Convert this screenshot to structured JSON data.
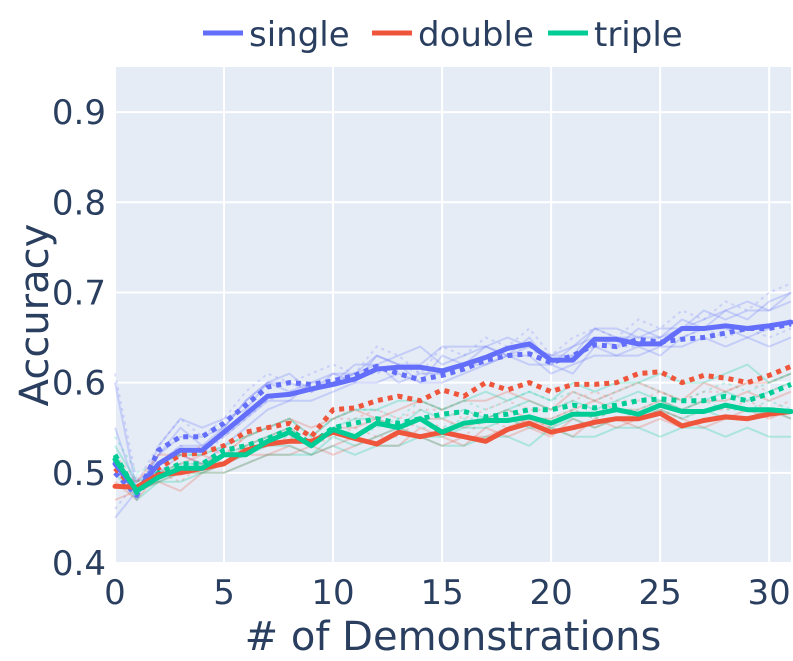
{
  "chart_data": {
    "type": "line",
    "xlabel": "# of Demonstrations",
    "ylabel": "Accuracy",
    "xlim": [
      0,
      31
    ],
    "ylim": [
      0.4,
      0.95
    ],
    "xticks": [
      0,
      5,
      10,
      15,
      20,
      25,
      30
    ],
    "yticks": [
      0.4,
      0.5,
      0.6,
      0.7,
      0.8,
      0.9
    ],
    "xtick_labels": [
      "0",
      "5",
      "10",
      "15",
      "20",
      "25",
      "30"
    ],
    "ytick_labels": [
      "0.4",
      "0.5",
      "0.6",
      "0.7",
      "0.8",
      "0.9"
    ],
    "grid": true,
    "legend": {
      "placement": "top",
      "orientation": "horizontal"
    },
    "x": [
      0,
      1,
      2,
      3,
      4,
      5,
      6,
      7,
      8,
      9,
      10,
      11,
      12,
      13,
      14,
      15,
      16,
      17,
      18,
      19,
      20,
      21,
      22,
      23,
      24,
      25,
      26,
      27,
      28,
      29,
      30,
      31
    ],
    "series": [
      {
        "name": "single",
        "color": "#636efa",
        "values": [
          0.51,
          0.48,
          0.51,
          0.525,
          0.525,
          0.545,
          0.565,
          0.585,
          0.587,
          0.593,
          0.598,
          0.604,
          0.615,
          0.617,
          0.617,
          0.613,
          0.62,
          0.628,
          0.638,
          0.643,
          0.625,
          0.625,
          0.648,
          0.648,
          0.643,
          0.643,
          0.66,
          0.66,
          0.663,
          0.66,
          0.663,
          0.667
        ],
        "dotted_values": [
          0.5,
          0.475,
          0.525,
          0.54,
          0.54,
          0.555,
          0.575,
          0.595,
          0.6,
          0.598,
          0.602,
          0.608,
          0.618,
          0.61,
          0.603,
          0.608,
          0.615,
          0.625,
          0.63,
          0.632,
          0.622,
          0.63,
          0.642,
          0.64,
          0.648,
          0.645,
          0.648,
          0.65,
          0.655,
          0.66,
          0.66,
          0.665
        ],
        "faint_values": [
          [
            0.6,
            0.48,
            0.52,
            0.55,
            0.53,
            0.55,
            0.58,
            0.6,
            0.59,
            0.6,
            0.61,
            0.6,
            0.63,
            0.62,
            0.6,
            0.63,
            0.62,
            0.64,
            0.63,
            0.65,
            0.62,
            0.64,
            0.65,
            0.64,
            0.66,
            0.65,
            0.67,
            0.66,
            0.68,
            0.67,
            0.69,
            0.7
          ],
          [
            0.45,
            0.48,
            0.5,
            0.52,
            0.51,
            0.53,
            0.55,
            0.57,
            0.58,
            0.58,
            0.59,
            0.6,
            0.6,
            0.61,
            0.6,
            0.6,
            0.61,
            0.62,
            0.63,
            0.63,
            0.61,
            0.62,
            0.63,
            0.63,
            0.63,
            0.64,
            0.64,
            0.65,
            0.64,
            0.65,
            0.64,
            0.65
          ],
          [
            0.52,
            0.47,
            0.53,
            0.56,
            0.55,
            0.56,
            0.57,
            0.6,
            0.61,
            0.59,
            0.6,
            0.62,
            0.62,
            0.63,
            0.64,
            0.62,
            0.63,
            0.64,
            0.65,
            0.64,
            0.63,
            0.63,
            0.66,
            0.66,
            0.65,
            0.65,
            0.66,
            0.68,
            0.67,
            0.68,
            0.68,
            0.69
          ],
          [
            0.5,
            0.49,
            0.51,
            0.53,
            0.53,
            0.54,
            0.56,
            0.58,
            0.58,
            0.6,
            0.6,
            0.61,
            0.62,
            0.6,
            0.61,
            0.61,
            0.62,
            0.62,
            0.63,
            0.62,
            0.62,
            0.61,
            0.64,
            0.63,
            0.64,
            0.63,
            0.65,
            0.66,
            0.66,
            0.65,
            0.66,
            0.67
          ],
          [
            0.55,
            0.48,
            0.52,
            0.54,
            0.54,
            0.55,
            0.58,
            0.6,
            0.6,
            0.59,
            0.61,
            0.61,
            0.63,
            0.62,
            0.62,
            0.64,
            0.64,
            0.64,
            0.63,
            0.64,
            0.63,
            0.64,
            0.66,
            0.65,
            0.65,
            0.66,
            0.66,
            0.67,
            0.68,
            0.69,
            0.68,
            0.7
          ]
        ]
      },
      {
        "name": "double",
        "color": "#ef553b",
        "values": [
          0.485,
          0.484,
          0.498,
          0.5,
          0.505,
          0.51,
          0.525,
          0.532,
          0.535,
          0.535,
          0.545,
          0.538,
          0.532,
          0.545,
          0.54,
          0.545,
          0.54,
          0.535,
          0.548,
          0.555,
          0.545,
          0.55,
          0.556,
          0.56,
          0.56,
          0.566,
          0.552,
          0.558,
          0.562,
          0.56,
          0.565,
          0.568
        ],
        "dotted_values": [
          0.505,
          0.48,
          0.505,
          0.52,
          0.522,
          0.53,
          0.545,
          0.55,
          0.555,
          0.54,
          0.57,
          0.572,
          0.58,
          0.585,
          0.58,
          0.592,
          0.585,
          0.6,
          0.592,
          0.6,
          0.59,
          0.598,
          0.598,
          0.6,
          0.61,
          0.612,
          0.6,
          0.608,
          0.605,
          0.6,
          0.608,
          0.618
        ],
        "faint_values": [
          [
            0.51,
            0.48,
            0.49,
            0.48,
            0.5,
            0.51,
            0.52,
            0.52,
            0.53,
            0.52,
            0.53,
            0.54,
            0.53,
            0.53,
            0.55,
            0.54,
            0.53,
            0.55,
            0.54,
            0.55,
            0.54,
            0.56,
            0.55,
            0.56,
            0.55,
            0.56,
            0.55,
            0.56,
            0.56,
            0.57,
            0.56,
            0.57
          ],
          [
            0.49,
            0.47,
            0.5,
            0.51,
            0.52,
            0.51,
            0.53,
            0.54,
            0.55,
            0.53,
            0.55,
            0.55,
            0.56,
            0.55,
            0.56,
            0.56,
            0.55,
            0.56,
            0.57,
            0.56,
            0.56,
            0.57,
            0.58,
            0.57,
            0.57,
            0.58,
            0.57,
            0.58,
            0.58,
            0.59,
            0.58,
            0.59
          ],
          [
            0.5,
            0.49,
            0.52,
            0.52,
            0.51,
            0.52,
            0.54,
            0.55,
            0.56,
            0.55,
            0.56,
            0.57,
            0.56,
            0.57,
            0.58,
            0.57,
            0.58,
            0.58,
            0.59,
            0.58,
            0.57,
            0.59,
            0.58,
            0.59,
            0.6,
            0.59,
            0.58,
            0.6,
            0.59,
            0.6,
            0.6,
            0.61
          ],
          [
            0.47,
            0.48,
            0.49,
            0.5,
            0.5,
            0.5,
            0.51,
            0.52,
            0.52,
            0.53,
            0.52,
            0.53,
            0.54,
            0.55,
            0.54,
            0.53,
            0.54,
            0.54,
            0.55,
            0.56,
            0.55,
            0.54,
            0.56,
            0.55,
            0.56,
            0.57,
            0.56,
            0.55,
            0.56,
            0.56,
            0.57,
            0.56
          ]
        ]
      },
      {
        "name": "triple",
        "color": "#00cc96",
        "values": [
          0.515,
          0.48,
          0.495,
          0.505,
          0.505,
          0.52,
          0.52,
          0.535,
          0.545,
          0.53,
          0.548,
          0.54,
          0.555,
          0.55,
          0.56,
          0.545,
          0.555,
          0.558,
          0.558,
          0.562,
          0.555,
          0.565,
          0.565,
          0.57,
          0.565,
          0.575,
          0.568,
          0.568,
          0.575,
          0.57,
          0.57,
          0.568
        ],
        "dotted_values": [
          0.52,
          0.478,
          0.5,
          0.51,
          0.51,
          0.525,
          0.53,
          0.538,
          0.548,
          0.532,
          0.55,
          0.555,
          0.56,
          0.555,
          0.56,
          0.565,
          0.568,
          0.562,
          0.565,
          0.57,
          0.57,
          0.575,
          0.572,
          0.575,
          0.58,
          0.582,
          0.58,
          0.58,
          0.585,
          0.58,
          0.588,
          0.598
        ],
        "faint_values": [
          [
            0.53,
            0.49,
            0.5,
            0.51,
            0.51,
            0.52,
            0.53,
            0.54,
            0.55,
            0.53,
            0.55,
            0.56,
            0.56,
            0.55,
            0.57,
            0.56,
            0.57,
            0.56,
            0.57,
            0.58,
            0.57,
            0.58,
            0.57,
            0.58,
            0.59,
            0.58,
            0.57,
            0.58,
            0.59,
            0.58,
            0.59,
            0.6
          ],
          [
            0.5,
            0.47,
            0.49,
            0.5,
            0.5,
            0.51,
            0.52,
            0.53,
            0.53,
            0.52,
            0.54,
            0.53,
            0.54,
            0.55,
            0.54,
            0.54,
            0.55,
            0.55,
            0.56,
            0.55,
            0.55,
            0.56,
            0.55,
            0.56,
            0.56,
            0.57,
            0.56,
            0.57,
            0.56,
            0.56,
            0.57,
            0.56
          ],
          [
            0.52,
            0.48,
            0.51,
            0.52,
            0.52,
            0.53,
            0.54,
            0.55,
            0.56,
            0.54,
            0.56,
            0.57,
            0.57,
            0.58,
            0.58,
            0.57,
            0.58,
            0.59,
            0.58,
            0.59,
            0.58,
            0.6,
            0.59,
            0.6,
            0.6,
            0.61,
            0.6,
            0.6,
            0.61,
            0.62,
            0.6,
            0.61
          ],
          [
            0.51,
            0.48,
            0.49,
            0.49,
            0.5,
            0.5,
            0.51,
            0.52,
            0.52,
            0.52,
            0.53,
            0.52,
            0.53,
            0.53,
            0.54,
            0.53,
            0.53,
            0.54,
            0.54,
            0.53,
            0.55,
            0.54,
            0.54,
            0.55,
            0.55,
            0.54,
            0.55,
            0.55,
            0.54,
            0.55,
            0.54,
            0.54
          ]
        ]
      }
    ]
  }
}
